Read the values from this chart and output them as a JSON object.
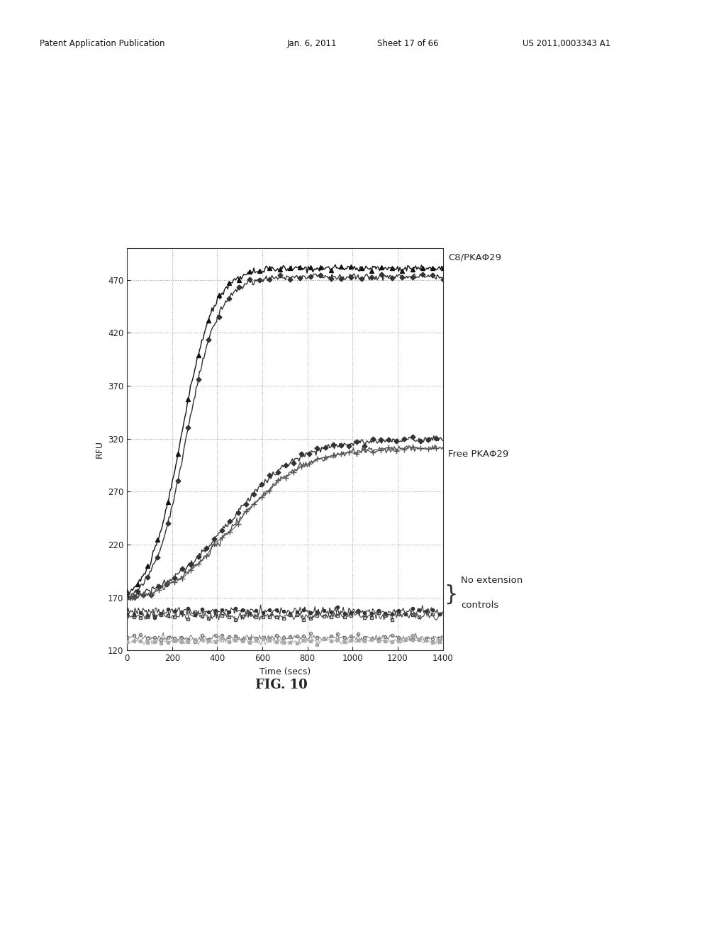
{
  "title": "",
  "xlabel": "Time (secs)",
  "ylabel": "RFU",
  "xlim": [
    0,
    1400
  ],
  "ylim": [
    120,
    500
  ],
  "yticks": [
    120,
    170,
    220,
    270,
    320,
    370,
    420,
    470
  ],
  "xticks": [
    0,
    200,
    400,
    600,
    800,
    1000,
    1200,
    1400
  ],
  "label_c8_pka": "C8/PKAΦ29",
  "label_free_pka": "Free PKAΦ29",
  "label_no_ext_1": "No extension",
  "label_no_ext_2": "controls",
  "header_left": "Patent Application Publication",
  "header_date": "Jan. 6, 2011",
  "header_sheet": "Sheet 17 of 66",
  "header_right": "US 2011,0003343 A1",
  "fig_label": "FIG. 10",
  "background_color": "#ffffff",
  "line_color": "#333333",
  "grid_color": "#999999"
}
